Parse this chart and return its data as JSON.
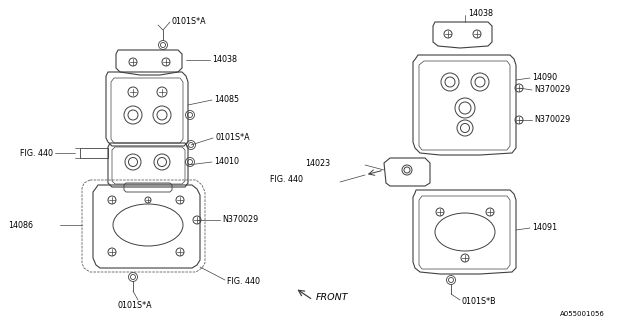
{
  "bg_color": "#ffffff",
  "line_color": "#404040",
  "text_color": "#000000",
  "diagram_code": "A055001056",
  "font_size": 5.8,
  "small_font": 5.0,
  "labels": {
    "0101SA_top": "0101S*A",
    "14038_left": "14038",
    "14085": "14085",
    "0101SA_mid": "0101S*A",
    "14010": "14010",
    "FIG440_left": "FIG. 440",
    "N370029_left": "N370029",
    "14086": "14086",
    "0101SA_bot": "0101S*A",
    "FIG440_bot": "FIG. 440",
    "FRONT": "FRONT",
    "14038_right": "14038",
    "14090": "14090",
    "N370029_right1": "N370029",
    "14023": "14023",
    "N370029_right2": "N370029",
    "FIG440_right": "FIG. 440",
    "14091": "14091",
    "0101SB": "0101S*B"
  }
}
